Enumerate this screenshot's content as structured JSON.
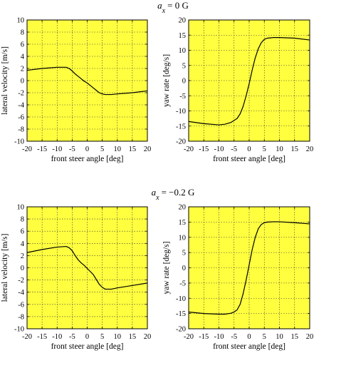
{
  "figure": {
    "sections": [
      {
        "title_var": "a",
        "title_sub": "x",
        "title_rest": "= 0 G"
      },
      {
        "title_var": "a",
        "title_sub": "x",
        "title_rest": "= −0.2 G"
      }
    ]
  },
  "chart_data": [
    {
      "type": "line",
      "section": 0,
      "xlabel": "front steer angle [deg]",
      "ylabel": "lateral velocity [m/s]",
      "xlim": [
        -20,
        20
      ],
      "ylim": [
        -10,
        10
      ],
      "xticks": [
        -20,
        -15,
        -10,
        -5,
        0,
        5,
        10,
        15,
        20
      ],
      "yticks": [
        -10,
        -8,
        -6,
        -4,
        -2,
        0,
        2,
        4,
        6,
        8,
        10
      ],
      "grid": true,
      "background": "#ffff40",
      "line_color": "#000000",
      "x": [
        -20,
        -15,
        -10,
        -7,
        -6,
        -5,
        -4,
        -3,
        -2,
        -1,
        0,
        1,
        2,
        3,
        4,
        5,
        6,
        7,
        8,
        10,
        15,
        20
      ],
      "y": [
        1.7,
        2.0,
        2.2,
        2.2,
        2.0,
        1.6,
        1.1,
        0.7,
        0.3,
        -0.1,
        -0.4,
        -0.8,
        -1.2,
        -1.6,
        -2.0,
        -2.2,
        -2.3,
        -2.3,
        -2.3,
        -2.2,
        -2.0,
        -1.7
      ]
    },
    {
      "type": "line",
      "section": 0,
      "xlabel": "front steer angle [deg]",
      "ylabel": "yaw rate [deg/s]",
      "xlim": [
        -20,
        20
      ],
      "ylim": [
        -20,
        20
      ],
      "xticks": [
        -20,
        -15,
        -10,
        -5,
        0,
        5,
        10,
        15,
        20
      ],
      "yticks": [
        -20,
        -15,
        -10,
        -5,
        0,
        5,
        10,
        15,
        20
      ],
      "grid": true,
      "background": "#ffff40",
      "line_color": "#000000",
      "x": [
        -20,
        -15,
        -10,
        -8,
        -6,
        -4,
        -3,
        -2,
        -1,
        0,
        1,
        2,
        3,
        4,
        5,
        6,
        8,
        10,
        15,
        20
      ],
      "y": [
        -13.5,
        -14.2,
        -14.6,
        -14.4,
        -13.8,
        -12.5,
        -11.0,
        -8.5,
        -5.0,
        -1.0,
        3.5,
        7.5,
        10.5,
        12.5,
        13.6,
        14.0,
        14.2,
        14.2,
        14.0,
        13.4
      ]
    },
    {
      "type": "line",
      "section": 1,
      "xlabel": "front steer angle [deg]",
      "ylabel": "lateral velocity [m/s]",
      "xlim": [
        -20,
        20
      ],
      "ylim": [
        -10,
        10
      ],
      "xticks": [
        -20,
        -15,
        -10,
        -5,
        0,
        5,
        10,
        15,
        20
      ],
      "yticks": [
        -10,
        -8,
        -6,
        -4,
        -2,
        0,
        2,
        4,
        6,
        8,
        10
      ],
      "grid": true,
      "background": "#ffff40",
      "line_color": "#000000",
      "x": [
        -20,
        -15,
        -10,
        -7,
        -6,
        -5,
        -4,
        -3,
        -2,
        -1,
        0,
        1,
        2,
        3,
        4,
        5,
        6,
        7,
        8,
        10,
        15,
        20
      ],
      "y": [
        2.5,
        3.0,
        3.4,
        3.5,
        3.3,
        2.8,
        2.0,
        1.3,
        0.8,
        0.4,
        -0.1,
        -0.6,
        -1.1,
        -1.9,
        -2.7,
        -3.2,
        -3.5,
        -3.5,
        -3.5,
        -3.3,
        -2.9,
        -2.5
      ]
    },
    {
      "type": "line",
      "section": 1,
      "xlabel": "front steer angle [deg]",
      "ylabel": "yaw rate [deg/s]",
      "xlim": [
        -20,
        20
      ],
      "ylim": [
        -20,
        20
      ],
      "xticks": [
        -20,
        -15,
        -10,
        -5,
        0,
        5,
        10,
        15,
        20
      ],
      "yticks": [
        -20,
        -15,
        -10,
        -5,
        0,
        5,
        10,
        15,
        20
      ],
      "grid": true,
      "background": "#ffff40",
      "line_color": "#000000",
      "x": [
        -20,
        -15,
        -10,
        -8,
        -6,
        -5,
        -4,
        -3,
        -2,
        -1,
        0,
        1,
        2,
        3,
        4,
        5,
        6,
        8,
        10,
        15,
        20
      ],
      "y": [
        -14.5,
        -15.0,
        -15.2,
        -15.2,
        -14.9,
        -14.5,
        -13.8,
        -12.0,
        -8.5,
        -4.0,
        1.0,
        6.0,
        10.0,
        12.8,
        14.2,
        14.8,
        15.0,
        15.1,
        15.1,
        14.8,
        14.4
      ]
    }
  ]
}
